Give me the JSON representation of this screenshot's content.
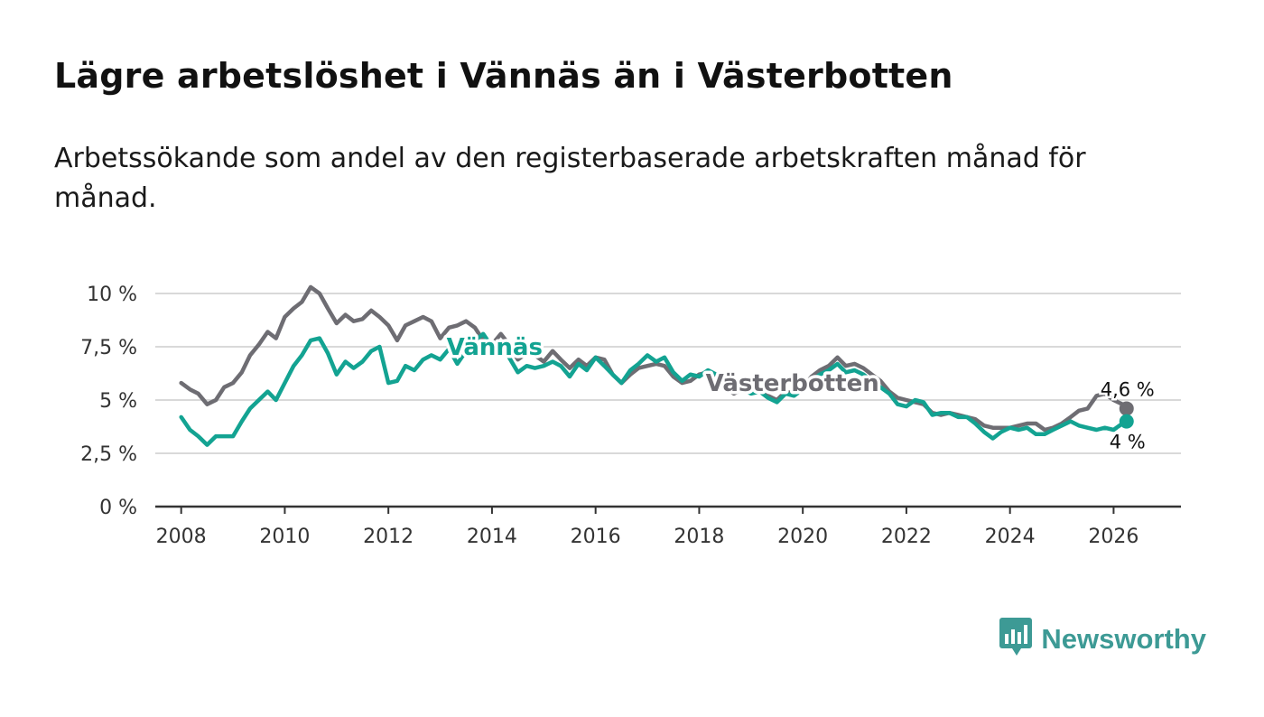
{
  "header": {
    "title": "Lägre arbetslöshet i Vännäs än i Västerbotten",
    "subtitle": "Arbetssökande som andel av den registerbaserade arbetskraften månad för månad."
  },
  "brand": {
    "name": "Newsworthy",
    "color": "#3d9a95",
    "icon": "bar-chart-speech-icon"
  },
  "chart_data": {
    "type": "line",
    "title": "Lägre arbetslöshet i Vännäs än i Västerbotten",
    "xlabel": "",
    "ylabel": "",
    "xlim": [
      2007.5,
      2027.3
    ],
    "ylim": [
      0,
      10
    ],
    "grid": true,
    "y_ticks": [
      0,
      2.5,
      5,
      7.5,
      10
    ],
    "y_tick_labels": [
      "0 %",
      "2,5 %",
      "5 %",
      "7,5 %",
      "10 %"
    ],
    "x_ticks": [
      2008,
      2010,
      2012,
      2014,
      2016,
      2018,
      2020,
      2022,
      2024,
      2026
    ],
    "x_tick_labels": [
      "2008",
      "2010",
      "2012",
      "2014",
      "2016",
      "2018",
      "2020",
      "2022",
      "2024",
      "2026"
    ],
    "series": [
      {
        "name": "Västerbotten",
        "color": "#6e6d73",
        "end_label": "4,6 %",
        "points": [
          [
            2008.0,
            5.8
          ],
          [
            2008.17,
            5.5
          ],
          [
            2008.33,
            5.3
          ],
          [
            2008.5,
            4.8
          ],
          [
            2008.67,
            5.0
          ],
          [
            2008.83,
            5.6
          ],
          [
            2009.0,
            5.8
          ],
          [
            2009.17,
            6.3
          ],
          [
            2009.33,
            7.1
          ],
          [
            2009.5,
            7.6
          ],
          [
            2009.67,
            8.2
          ],
          [
            2009.83,
            7.9
          ],
          [
            2010.0,
            8.9
          ],
          [
            2010.17,
            9.3
          ],
          [
            2010.33,
            9.6
          ],
          [
            2010.5,
            10.3
          ],
          [
            2010.67,
            10.0
          ],
          [
            2010.83,
            9.3
          ],
          [
            2011.0,
            8.6
          ],
          [
            2011.17,
            9.0
          ],
          [
            2011.33,
            8.7
          ],
          [
            2011.5,
            8.8
          ],
          [
            2011.67,
            9.2
          ],
          [
            2011.83,
            8.9
          ],
          [
            2012.0,
            8.5
          ],
          [
            2012.17,
            7.8
          ],
          [
            2012.33,
            8.5
          ],
          [
            2012.5,
            8.7
          ],
          [
            2012.67,
            8.9
          ],
          [
            2012.83,
            8.7
          ],
          [
            2013.0,
            7.9
          ],
          [
            2013.17,
            8.4
          ],
          [
            2013.33,
            8.5
          ],
          [
            2013.5,
            8.7
          ],
          [
            2013.67,
            8.4
          ],
          [
            2013.83,
            7.8
          ],
          [
            2014.0,
            7.6
          ],
          [
            2014.17,
            8.1
          ],
          [
            2014.33,
            7.6
          ],
          [
            2014.5,
            6.9
          ],
          [
            2014.67,
            7.2
          ],
          [
            2014.83,
            7.1
          ],
          [
            2015.0,
            6.8
          ],
          [
            2015.17,
            7.3
          ],
          [
            2015.33,
            6.9
          ],
          [
            2015.5,
            6.5
          ],
          [
            2015.67,
            6.9
          ],
          [
            2015.83,
            6.6
          ],
          [
            2016.0,
            7.0
          ],
          [
            2016.17,
            6.9
          ],
          [
            2016.33,
            6.2
          ],
          [
            2016.5,
            5.8
          ],
          [
            2016.67,
            6.2
          ],
          [
            2016.83,
            6.5
          ],
          [
            2017.0,
            6.6
          ],
          [
            2017.17,
            6.7
          ],
          [
            2017.33,
            6.6
          ],
          [
            2017.5,
            6.1
          ],
          [
            2017.67,
            5.8
          ],
          [
            2017.83,
            5.9
          ],
          [
            2018.0,
            6.2
          ],
          [
            2018.17,
            6.3
          ],
          [
            2018.33,
            6.1
          ],
          [
            2018.5,
            5.6
          ],
          [
            2018.67,
            5.3
          ],
          [
            2018.83,
            5.5
          ],
          [
            2019.0,
            5.4
          ],
          [
            2019.17,
            5.5
          ],
          [
            2019.33,
            5.2
          ],
          [
            2019.5,
            5.0
          ],
          [
            2019.67,
            5.4
          ],
          [
            2019.83,
            5.3
          ],
          [
            2020.0,
            5.6
          ],
          [
            2020.17,
            6.1
          ],
          [
            2020.33,
            6.4
          ],
          [
            2020.5,
            6.6
          ],
          [
            2020.67,
            7.0
          ],
          [
            2020.83,
            6.6
          ],
          [
            2021.0,
            6.7
          ],
          [
            2021.17,
            6.5
          ],
          [
            2021.33,
            6.2
          ],
          [
            2021.5,
            5.9
          ],
          [
            2021.67,
            5.4
          ],
          [
            2021.83,
            5.1
          ],
          [
            2022.0,
            5.0
          ],
          [
            2022.17,
            4.9
          ],
          [
            2022.33,
            4.8
          ],
          [
            2022.5,
            4.4
          ],
          [
            2022.67,
            4.3
          ],
          [
            2022.83,
            4.4
          ],
          [
            2023.0,
            4.3
          ],
          [
            2023.17,
            4.2
          ],
          [
            2023.33,
            4.1
          ],
          [
            2023.5,
            3.8
          ],
          [
            2023.67,
            3.7
          ],
          [
            2023.83,
            3.7
          ],
          [
            2024.0,
            3.7
          ],
          [
            2024.17,
            3.8
          ],
          [
            2024.33,
            3.9
          ],
          [
            2024.5,
            3.9
          ],
          [
            2024.67,
            3.6
          ],
          [
            2024.83,
            3.7
          ],
          [
            2025.0,
            3.9
          ],
          [
            2025.17,
            4.2
          ],
          [
            2025.33,
            4.5
          ],
          [
            2025.5,
            4.6
          ],
          [
            2025.67,
            5.2
          ],
          [
            2025.83,
            5.3
          ],
          [
            2026.0,
            5.0
          ],
          [
            2026.17,
            4.8
          ],
          [
            2026.25,
            4.6
          ]
        ]
      },
      {
        "name": "Vännäs",
        "color": "#13a392",
        "end_label": "4 %",
        "points": [
          [
            2008.0,
            4.2
          ],
          [
            2008.17,
            3.6
          ],
          [
            2008.33,
            3.3
          ],
          [
            2008.5,
            2.9
          ],
          [
            2008.67,
            3.3
          ],
          [
            2008.83,
            3.3
          ],
          [
            2009.0,
            3.3
          ],
          [
            2009.17,
            4.0
          ],
          [
            2009.33,
            4.6
          ],
          [
            2009.5,
            5.0
          ],
          [
            2009.67,
            5.4
          ],
          [
            2009.83,
            5.0
          ],
          [
            2010.0,
            5.8
          ],
          [
            2010.17,
            6.6
          ],
          [
            2010.33,
            7.1
          ],
          [
            2010.5,
            7.8
          ],
          [
            2010.67,
            7.9
          ],
          [
            2010.83,
            7.2
          ],
          [
            2011.0,
            6.2
          ],
          [
            2011.17,
            6.8
          ],
          [
            2011.33,
            6.5
          ],
          [
            2011.5,
            6.8
          ],
          [
            2011.67,
            7.3
          ],
          [
            2011.83,
            7.5
          ],
          [
            2012.0,
            5.8
          ],
          [
            2012.17,
            5.9
          ],
          [
            2012.33,
            6.6
          ],
          [
            2012.5,
            6.4
          ],
          [
            2012.67,
            6.9
          ],
          [
            2012.83,
            7.1
          ],
          [
            2013.0,
            6.9
          ],
          [
            2013.17,
            7.4
          ],
          [
            2013.33,
            6.7
          ],
          [
            2013.5,
            7.3
          ],
          [
            2013.67,
            7.8
          ],
          [
            2013.83,
            8.1
          ],
          [
            2014.0,
            7.5
          ],
          [
            2014.17,
            7.4
          ],
          [
            2014.33,
            7.0
          ],
          [
            2014.5,
            6.3
          ],
          [
            2014.67,
            6.6
          ],
          [
            2014.83,
            6.5
          ],
          [
            2015.0,
            6.6
          ],
          [
            2015.17,
            6.8
          ],
          [
            2015.33,
            6.6
          ],
          [
            2015.5,
            6.1
          ],
          [
            2015.67,
            6.7
          ],
          [
            2015.83,
            6.4
          ],
          [
            2016.0,
            7.0
          ],
          [
            2016.17,
            6.6
          ],
          [
            2016.33,
            6.2
          ],
          [
            2016.5,
            5.8
          ],
          [
            2016.67,
            6.4
          ],
          [
            2016.83,
            6.7
          ],
          [
            2017.0,
            7.1
          ],
          [
            2017.17,
            6.8
          ],
          [
            2017.33,
            7.0
          ],
          [
            2017.5,
            6.3
          ],
          [
            2017.67,
            5.9
          ],
          [
            2017.83,
            6.2
          ],
          [
            2018.0,
            6.1
          ],
          [
            2018.17,
            6.4
          ],
          [
            2018.33,
            6.2
          ],
          [
            2018.5,
            5.6
          ],
          [
            2018.67,
            5.4
          ],
          [
            2018.83,
            5.5
          ],
          [
            2019.0,
            5.3
          ],
          [
            2019.17,
            5.4
          ],
          [
            2019.33,
            5.1
          ],
          [
            2019.5,
            4.9
          ],
          [
            2019.67,
            5.3
          ],
          [
            2019.83,
            5.2
          ],
          [
            2020.0,
            5.5
          ],
          [
            2020.17,
            5.9
          ],
          [
            2020.33,
            6.2
          ],
          [
            2020.5,
            6.4
          ],
          [
            2020.67,
            6.7
          ],
          [
            2020.83,
            6.3
          ],
          [
            2021.0,
            6.4
          ],
          [
            2021.17,
            6.2
          ],
          [
            2021.33,
            5.9
          ],
          [
            2021.5,
            5.6
          ],
          [
            2021.67,
            5.3
          ],
          [
            2021.83,
            4.8
          ],
          [
            2022.0,
            4.7
          ],
          [
            2022.17,
            5.0
          ],
          [
            2022.33,
            4.9
          ],
          [
            2022.5,
            4.3
          ],
          [
            2022.67,
            4.4
          ],
          [
            2022.83,
            4.4
          ],
          [
            2023.0,
            4.2
          ],
          [
            2023.17,
            4.2
          ],
          [
            2023.33,
            3.9
          ],
          [
            2023.5,
            3.5
          ],
          [
            2023.67,
            3.2
          ],
          [
            2023.83,
            3.5
          ],
          [
            2024.0,
            3.7
          ],
          [
            2024.17,
            3.6
          ],
          [
            2024.33,
            3.7
          ],
          [
            2024.5,
            3.4
          ],
          [
            2024.67,
            3.4
          ],
          [
            2024.83,
            3.6
          ],
          [
            2025.0,
            3.8
          ],
          [
            2025.17,
            4.0
          ],
          [
            2025.33,
            3.8
          ],
          [
            2025.5,
            3.7
          ],
          [
            2025.67,
            3.6
          ],
          [
            2025.83,
            3.7
          ],
          [
            2026.0,
            3.6
          ],
          [
            2026.17,
            3.9
          ],
          [
            2026.25,
            4.0
          ]
        ]
      }
    ],
    "inline_labels": [
      {
        "series": "Vännäs",
        "text": "Vännäs",
        "at": [
          2014.05,
          7.5
        ]
      },
      {
        "series": "Västerbotten",
        "text": "Västerbotten",
        "at": [
          2019.8,
          5.8
        ]
      }
    ]
  }
}
